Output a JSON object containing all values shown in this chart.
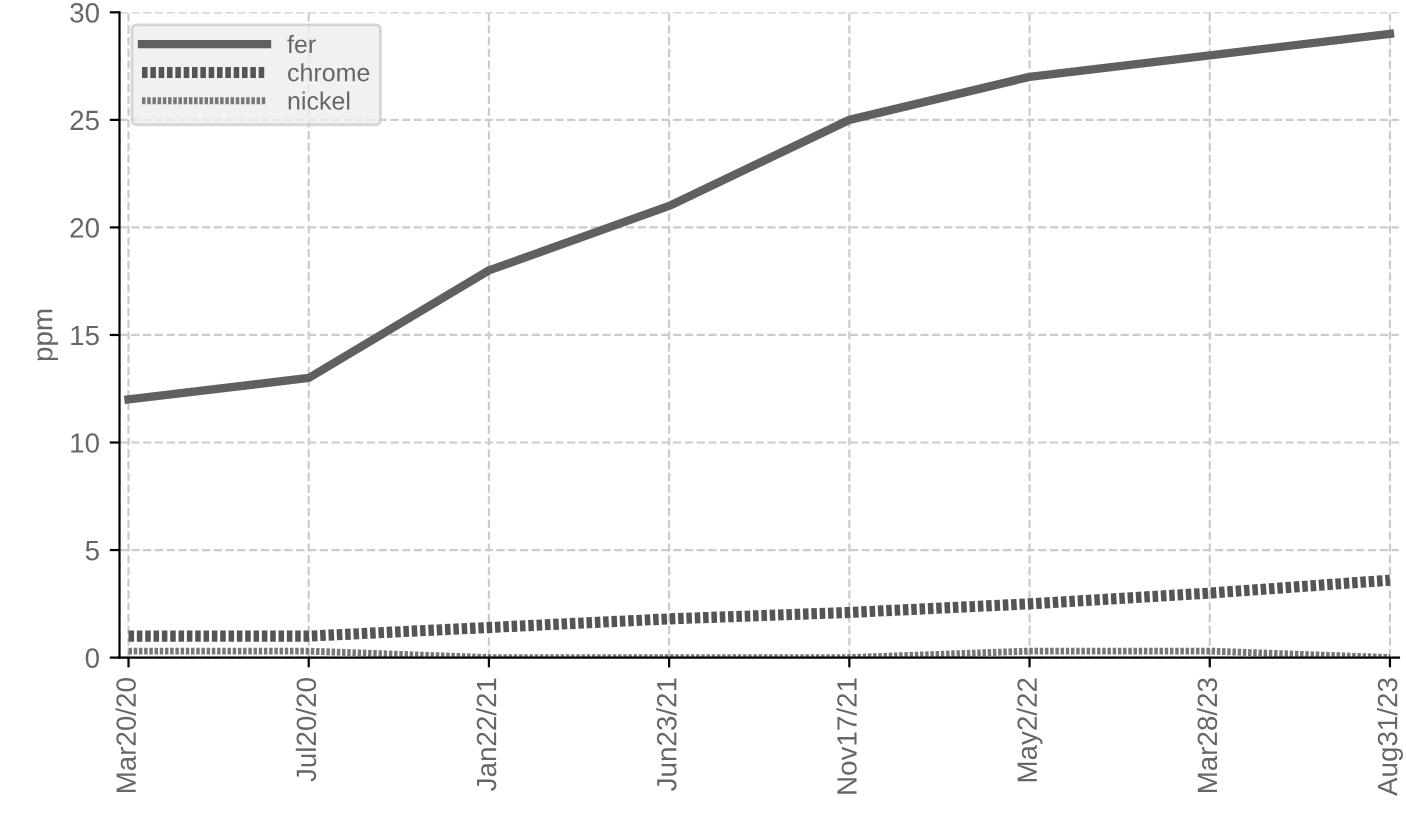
{
  "chart_data": {
    "type": "line",
    "ylabel": "ppm",
    "categories": [
      "Mar20/20",
      "Jul20/20",
      "Jan22/21",
      "Jun23/21",
      "Nov17/21",
      "May2/22",
      "Mar28/23",
      "Aug31/23"
    ],
    "series": [
      {
        "name": "fer",
        "color": "#606060",
        "line_style": "solid",
        "values": [
          12,
          13,
          18,
          21,
          25,
          27,
          28,
          29
        ]
      },
      {
        "name": "chrome",
        "color": "#555555",
        "line_style": "dotted",
        "values": [
          1.0,
          1.0,
          1.4,
          1.8,
          2.1,
          2.5,
          3.0,
          3.6
        ]
      },
      {
        "name": "nickel",
        "color": "#777777",
        "line_style": "dotted",
        "values": [
          0.3,
          0.3,
          0,
          0,
          0,
          0.3,
          0.3,
          0
        ]
      }
    ],
    "ylim": [
      0,
      30
    ],
    "yticks": [
      0,
      5,
      10,
      15,
      20,
      25,
      30
    ],
    "grid": true,
    "legend": "top left",
    "marker": "none"
  }
}
